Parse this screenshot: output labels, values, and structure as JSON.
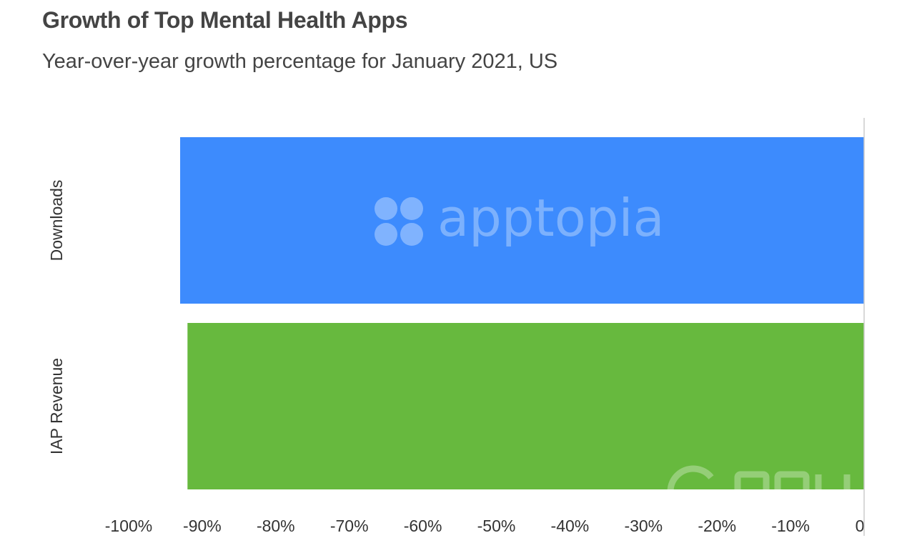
{
  "chart_data": {
    "type": "bar",
    "orientation": "horizontal",
    "title": "Growth of Top Mental Health Apps",
    "subtitle": "Year-over-year growth percentage for January 2021, US",
    "categories": [
      "Downloads",
      "IAP Revenue"
    ],
    "values": [
      -93,
      -92
    ],
    "colors": [
      "#3d8bfd",
      "#67b93e"
    ],
    "xlim": [
      -100,
      0
    ],
    "x_ticks": [
      -100,
      -90,
      -80,
      -70,
      -60,
      -50,
      -40,
      -30,
      -20,
      -10,
      0
    ],
    "x_tick_labels": [
      "-100%",
      "-90%",
      "-80%",
      "-70%",
      "-60%",
      "-50%",
      "-40%",
      "-30%",
      "-20%",
      "-10%",
      "0"
    ],
    "unit": "%",
    "grid": false,
    "legend": "none"
  },
  "watermark": {
    "text": "apptopia",
    "icon": "apptopia-logo-icon"
  },
  "corner_watermark_icon": "site-logo-icon"
}
